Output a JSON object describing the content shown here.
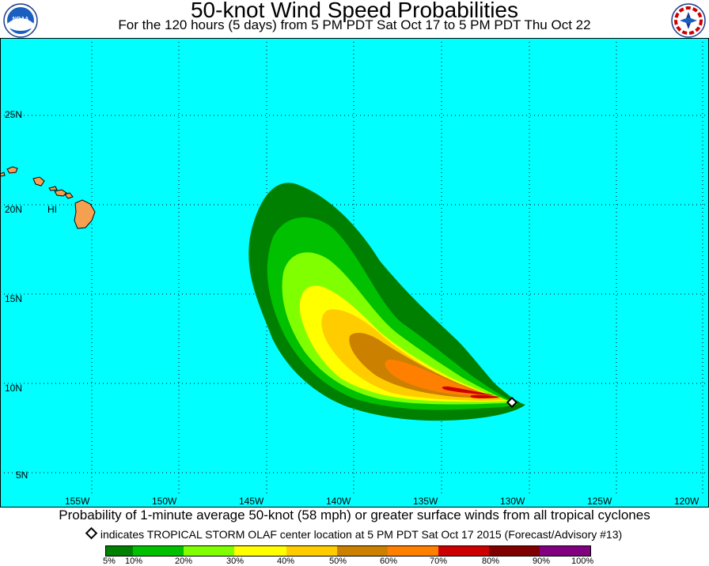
{
  "header": {
    "title": "50-knot Wind Speed Probabilities",
    "subtitle": "For the 120 hours (5 days) from 5 PM PDT Sat Oct 17 to 5 PM PDT Thu Oct 22"
  },
  "logos": {
    "left": "noaa-logo",
    "left_text": "NOAA",
    "right": "nws-logo"
  },
  "map": {
    "ocean_color": "#00ffff",
    "land_color": "#f5a050",
    "lat_labels": [
      "25N",
      "20N",
      "15N",
      "10N",
      "5N"
    ],
    "lon_labels": [
      "155W",
      "150W",
      "145W",
      "140W",
      "135W",
      "130W",
      "125W",
      "120W"
    ],
    "place_label": "HI",
    "storm_marker": "storm-center-marker"
  },
  "footer": {
    "caption": "Probability of 1-minute average 50-knot (58 mph) or greater surface winds from all tropical cyclones",
    "legend_note": "indicates TROPICAL STORM OLAF center location at 5 PM PDT Sat Oct 17 2015 (Forecast/Advisory #13)"
  },
  "scale": {
    "colors": [
      "#008000",
      "#00c000",
      "#80ff00",
      "#ffff00",
      "#ffcc00",
      "#cc8000",
      "#ff8000",
      "#cc0000",
      "#800000",
      "#800080"
    ],
    "labels": [
      "5%",
      "10%",
      "20%",
      "30%",
      "40%",
      "50%",
      "60%",
      "70%",
      "80%",
      "90%",
      "100%"
    ]
  }
}
